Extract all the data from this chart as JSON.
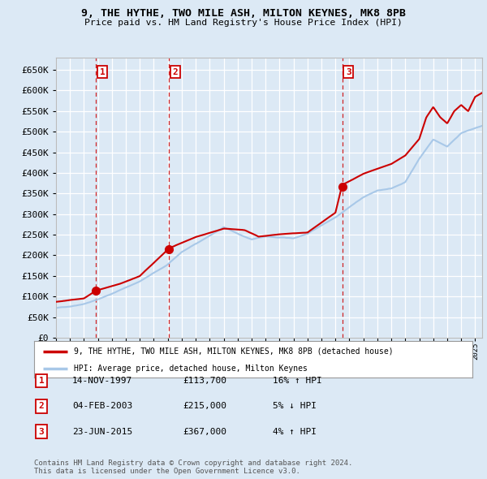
{
  "title": "9, THE HYTHE, TWO MILE ASH, MILTON KEYNES, MK8 8PB",
  "subtitle": "Price paid vs. HM Land Registry's House Price Index (HPI)",
  "ylim": [
    0,
    680000
  ],
  "yticks": [
    0,
    50000,
    100000,
    150000,
    200000,
    250000,
    300000,
    350000,
    400000,
    450000,
    500000,
    550000,
    600000,
    650000
  ],
  "background_color": "#dce9f5",
  "plot_bg_color": "#dce9f5",
  "grid_color": "#ffffff",
  "sale_color": "#cc0000",
  "hpi_color": "#a8c8e8",
  "sale_line_color": "#cc0000",
  "purchase_points": [
    {
      "year": 1997.87,
      "price": 113700,
      "label": "1"
    },
    {
      "year": 2003.09,
      "price": 215000,
      "label": "2"
    },
    {
      "year": 2015.48,
      "price": 367000,
      "label": "3"
    }
  ],
  "purchase_dashed_lines": [
    1997.87,
    2003.09,
    2015.48
  ],
  "legend_sale_label": "9, THE HYTHE, TWO MILE ASH, MILTON KEYNES, MK8 8PB (detached house)",
  "legend_hpi_label": "HPI: Average price, detached house, Milton Keynes",
  "table_rows": [
    {
      "num": "1",
      "date": "14-NOV-1997",
      "price": "£113,700",
      "hpi": "16% ↑ HPI"
    },
    {
      "num": "2",
      "date": "04-FEB-2003",
      "price": "£215,000",
      "hpi": "5% ↓ HPI"
    },
    {
      "num": "3",
      "date": "23-JUN-2015",
      "price": "£367,000",
      "hpi": "4% ↑ HPI"
    }
  ],
  "footer": "Contains HM Land Registry data © Crown copyright and database right 2024.\nThis data is licensed under the Open Government Licence v3.0.",
  "xmin": 1995,
  "xmax": 2025.5
}
